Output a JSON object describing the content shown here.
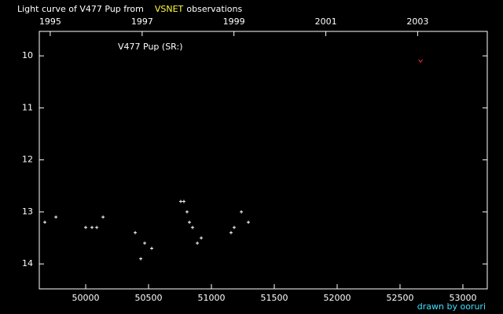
{
  "chart_data": {
    "type": "scatter",
    "title": "Light curve of V477 Pup from",
    "source": "VSNET",
    "title_suffix": "observations",
    "label": "V477 Pup (SR:)",
    "credit": "drawn by ooruri",
    "xlim": [
      49631,
      53194
    ],
    "ylim": [
      9.53,
      14.48
    ],
    "y_inverted": true,
    "xticks": [
      50000,
      50500,
      51000,
      51500,
      52000,
      52500,
      53000
    ],
    "yticks": [
      10,
      11,
      12,
      13,
      14
    ],
    "x2ticks": [
      {
        "value": 49718,
        "label": "1995"
      },
      {
        "value": 50449,
        "label": "1997"
      },
      {
        "value": 51179,
        "label": "1999"
      },
      {
        "value": 51910,
        "label": "2001"
      },
      {
        "value": 52640,
        "label": "2003"
      }
    ],
    "series": [
      {
        "color": "#ffffff",
        "marker": "plus",
        "x": [
          49675,
          49763,
          50000,
          50050,
          50088,
          50138,
          50394,
          50438,
          50469,
          50525,
          50756,
          50781,
          50806,
          50825,
          50850,
          50888,
          50919,
          51156,
          51181,
          51238,
          51294
        ],
        "values": [
          13.2,
          13.1,
          13.3,
          13.3,
          13.3,
          13.1,
          13.4,
          13.9,
          13.6,
          13.7,
          12.8,
          12.8,
          13.0,
          13.2,
          13.3,
          13.6,
          13.5,
          13.4,
          13.3,
          13.0,
          13.2
        ]
      },
      {
        "color": "#ff3030",
        "marker": "v",
        "x": [
          52663
        ],
        "values": [
          10.1
        ]
      }
    ]
  }
}
